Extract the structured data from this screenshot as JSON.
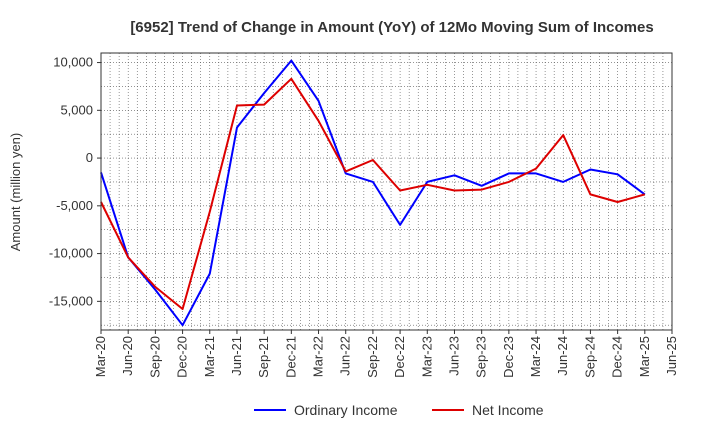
{
  "chart_data": {
    "type": "line",
    "title": "[6952]  Trend of Change in Amount (YoY) of 12Mo Moving Sum of Incomes",
    "xlabel": "",
    "ylabel": "Amount (million yen)",
    "ylim": [
      -18000,
      11000
    ],
    "yticks": [
      10000,
      5000,
      0,
      -5000,
      -10000,
      -15000
    ],
    "ytick_labels": [
      "10,000",
      "5,000",
      "0",
      "-5,000",
      "-10,000",
      "-15,000"
    ],
    "x": [
      "Mar-20",
      "Jun-20",
      "Sep-20",
      "Dec-20",
      "Mar-21",
      "Jun-21",
      "Sep-21",
      "Dec-21",
      "Mar-22",
      "Jun-22",
      "Sep-22",
      "Dec-22",
      "Mar-23",
      "Jun-23",
      "Sep-23",
      "Dec-23",
      "Mar-24",
      "Jun-24",
      "Sep-24",
      "Dec-24",
      "Mar-25",
      "Jun-25"
    ],
    "grid": true,
    "legend_position": "bottom",
    "series": [
      {
        "name": "Ordinary Income",
        "color": "#0000ff",
        "values": [
          -1500,
          -10400,
          -13800,
          -17500,
          -12100,
          3200,
          6800,
          10200,
          6000,
          -1600,
          -2500,
          -7000,
          -2500,
          -1800,
          -2900,
          -1600,
          -1600,
          -2500,
          -1200,
          -1700,
          -3800,
          null
        ]
      },
      {
        "name": "Net Income",
        "color": "#dd0000",
        "values": [
          -4600,
          -10400,
          -13500,
          -15800,
          -5600,
          5500,
          5600,
          8300,
          3900,
          -1400,
          -200,
          -3400,
          -2800,
          -3400,
          -3300,
          -2500,
          -1100,
          2400,
          -3800,
          -4600,
          -3800,
          null
        ]
      }
    ]
  }
}
